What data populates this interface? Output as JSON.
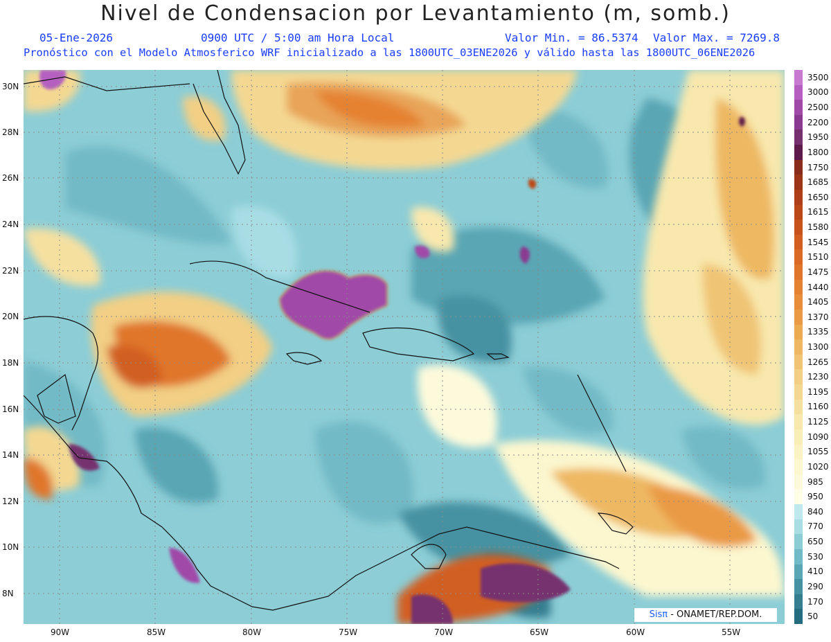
{
  "header": {
    "title": "Nivel de Condensacion por Levantamiento (m, somb.)",
    "date": "05-Ene-2026",
    "time": "0900 UTC / 5:00 am Hora Local",
    "min_label": "Valor Min. = 86.5374",
    "max_label": "Valor Max. = 7269.8",
    "model_line": "Pronóstico con el Modelo Atmosferico WRF inicializado a las 1800UTC_03ENE2026 y válido hasta las  1800UTC_06ENE2026"
  },
  "credit": {
    "brand": "Sisπ",
    "text": " - ONAMET/REP.DOM."
  },
  "axes": {
    "lat_labels": [
      "30N",
      "28N",
      "26N",
      "24N",
      "22N",
      "20N",
      "18N",
      "16N",
      "14N",
      "12N",
      "10N",
      "8N"
    ],
    "lon_labels": [
      "90W",
      "85W",
      "80W",
      "75W",
      "70W",
      "65W",
      "60W",
      "55W"
    ]
  },
  "colorbar": {
    "labels": [
      "3500",
      "3000",
      "2500",
      "2200",
      "1950",
      "1800",
      "1750",
      "1685",
      "1650",
      "1615",
      "1580",
      "1545",
      "1510",
      "1475",
      "1440",
      "1405",
      "1370",
      "1335",
      "1300",
      "1265",
      "1230",
      "1195",
      "1160",
      "1125",
      "1090",
      "1055",
      "1020",
      "985",
      "950",
      "840",
      "770",
      "650",
      "530",
      "410",
      "290",
      "170",
      "50"
    ],
    "colors": [
      "#c87ad0",
      "#b560c0",
      "#a04aa8",
      "#8a3a90",
      "#76306e",
      "#5e1a4a",
      "#8a2c1c",
      "#9c3418",
      "#ae3e18",
      "#bc4818",
      "#c8521c",
      "#d25e20",
      "#da6a26",
      "#e0762c",
      "#e58232",
      "#e88e3a",
      "#ea9a44",
      "#ecaa52",
      "#eeb862",
      "#f0c474",
      "#f2cf84",
      "#f4d892",
      "#f6e0a0",
      "#f8e8ad",
      "#faeeb8",
      "#fbf3c4",
      "#fcf7cf",
      "#fdfadb",
      "#fefde6",
      "#bfe9ee",
      "#a8dde4",
      "#8ccdd6",
      "#72bac6",
      "#5aa6b4",
      "#4692a2",
      "#357e90",
      "#266c80"
    ]
  },
  "chart_data": {
    "type": "heatmap",
    "title": "Nivel de Condensacion por Levantamiento (m, somb.)",
    "value_range": [
      86.5374,
      7269.8
    ],
    "levels": [
      50,
      170,
      290,
      410,
      530,
      650,
      770,
      840,
      950,
      985,
      1020,
      1055,
      1090,
      1125,
      1160,
      1195,
      1230,
      1265,
      1300,
      1335,
      1370,
      1405,
      1440,
      1475,
      1510,
      1545,
      1580,
      1615,
      1650,
      1685,
      1750,
      1800,
      1950,
      2200,
      2500,
      3000,
      3500
    ],
    "lon_range": [
      "92W",
      "52W"
    ],
    "lat_range": [
      "7N",
      "31N"
    ],
    "grid": true
  }
}
